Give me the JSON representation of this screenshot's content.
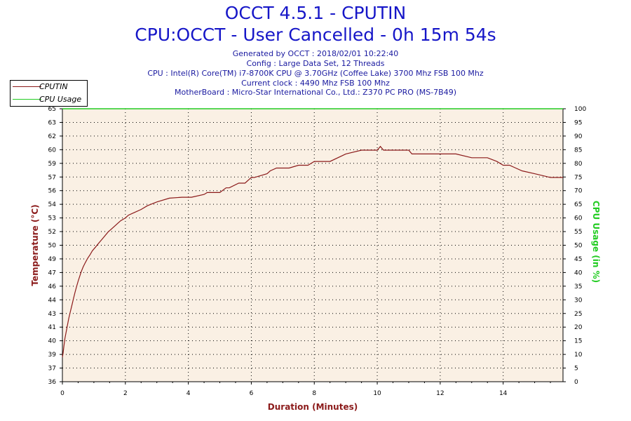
{
  "header": {
    "title": "OCCT 4.5.1 - CPUTIN",
    "subtitle": "CPU:OCCT - User Cancelled - 0h 15m 54s",
    "info_lines": [
      "Generated by OCCT : 2018/02/01 10:22:40",
      "Config : Large Data Set, 12 Threads",
      "CPU : Intel(R) Core(TM) i7-8700K CPU @ 3.70GHz (Coffee Lake) 3700 Mhz FSB 100 Mhz",
      "Current clock : 4490 Mhz FSB 100 Mhz",
      "MotherBoard : Micro-Star International Co., Ltd.: Z370 PC PRO (MS-7B49)"
    ]
  },
  "legend": {
    "items": [
      {
        "label": "CPUTIN",
        "color": "#8b1a1a"
      },
      {
        "label": "CPU Usage",
        "color": "#22cc22"
      }
    ]
  },
  "chart_data": {
    "type": "line",
    "xlabel": "Duration (Minutes)",
    "ylabel": "Temperature (°C)",
    "y2label": "CPU Usage (in %)",
    "xlim": [
      0,
      15.9
    ],
    "ylim": [
      36,
      65
    ],
    "y2lim": [
      0,
      100
    ],
    "x_ticks": [
      0,
      2,
      4,
      6,
      8,
      10,
      12,
      14
    ],
    "y_ticks": [
      "36",
      "37",
      "39",
      "40",
      "41",
      "43",
      "44",
      "46",
      "47",
      "49",
      "50",
      "52",
      "53",
      "54",
      "56",
      "57",
      "59",
      "60",
      "62",
      "63",
      "65"
    ],
    "y2_ticks": [
      0,
      5,
      10,
      15,
      20,
      25,
      30,
      35,
      40,
      45,
      50,
      55,
      60,
      65,
      70,
      75,
      80,
      85,
      90,
      95,
      100
    ],
    "grid": true,
    "legend_position": "top-left",
    "colors": {
      "plot_bg": "#faf0e4",
      "temperature": "#8b1a1a",
      "usage": "#22cc22",
      "ylabel": "#8b1a1a",
      "y2label": "#22cc22",
      "xlabel": "#8b1a1a"
    },
    "series": [
      {
        "name": "CPUTIN",
        "axis": "left",
        "x": [
          0,
          0.02,
          0.05,
          0.08,
          0.12,
          0.16,
          0.2,
          0.25,
          0.3,
          0.35,
          0.4,
          0.45,
          0.5,
          0.55,
          0.6,
          0.66,
          0.72,
          0.8,
          0.88,
          0.95,
          1.05,
          1.15,
          1.25,
          1.35,
          1.45,
          1.55,
          1.65,
          1.75,
          1.85,
          2.0,
          2.1,
          2.3,
          2.5,
          2.7,
          3.0,
          3.4,
          3.8,
          4.1,
          4.5,
          4.6,
          5.0,
          5.2,
          5.3,
          5.6,
          5.8,
          6.0,
          6.1,
          6.5,
          6.6,
          6.8,
          7.2,
          7.5,
          7.8,
          8.0,
          8.5,
          9.0,
          9.5,
          10.0,
          10.1,
          10.2,
          10.4,
          10.6,
          11.0,
          11.1,
          11.5,
          12.0,
          12.5,
          13.0,
          13.5,
          13.8,
          14.0,
          14.2,
          14.4,
          14.6,
          15.0,
          15.5,
          15.9
        ],
        "values": [
          38.6,
          39.0,
          39.8,
          40.6,
          41.3,
          42.0,
          42.7,
          43.4,
          44.1,
          44.8,
          45.5,
          46.1,
          46.7,
          47.2,
          47.7,
          48.2,
          48.6,
          49.1,
          49.5,
          49.9,
          50.3,
          50.7,
          51.1,
          51.5,
          51.9,
          52.2,
          52.5,
          52.8,
          53.1,
          53.4,
          53.7,
          54.0,
          54.3,
          54.7,
          55.1,
          55.5,
          55.6,
          55.6,
          55.9,
          56.1,
          56.1,
          56.6,
          56.6,
          57.1,
          57.1,
          57.7,
          57.7,
          58.1,
          58.4,
          58.7,
          58.7,
          59.0,
          59.0,
          59.4,
          59.4,
          60.2,
          60.6,
          60.6,
          61.0,
          60.6,
          60.6,
          60.6,
          60.6,
          60.2,
          60.2,
          60.2,
          60.2,
          59.8,
          59.8,
          59.4,
          59.0,
          59.0,
          58.7,
          58.4,
          58.1,
          57.7,
          57.7
        ]
      },
      {
        "name": "CPU Usage",
        "axis": "right",
        "x": [
          0,
          15.9
        ],
        "values": [
          100,
          100
        ]
      }
    ]
  }
}
